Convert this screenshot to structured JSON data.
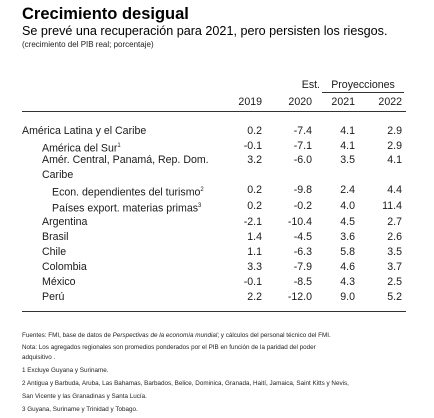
{
  "header": {
    "title": "Crecimiento desigual",
    "subtitle": "Se prevé una recuperación para 2021, pero persisten los riesgos.",
    "unit": "(crecimiento del PIB real; porcentaje)"
  },
  "table": {
    "est_label": "Est.",
    "proj_label": "Proyecciones",
    "years": [
      "2019",
      "2020",
      "2021",
      "2022"
    ],
    "rows": [
      {
        "label": "América Latina y el Caribe",
        "note": "",
        "values": [
          "0.2",
          "-7.4",
          "4.1",
          "2.9"
        ]
      },
      {
        "label": "América del Sur",
        "note": "1",
        "values": [
          "-0.1",
          "-7.1",
          "4.1",
          "2.9"
        ]
      },
      {
        "label": "Amér. Central, Panamá, Rep. Dom.",
        "note": "",
        "values": [
          "3.2",
          "-6.0",
          "3.5",
          "4.1"
        ]
      },
      {
        "label": "Caribe",
        "note": "",
        "values": [
          "",
          "",
          "",
          ""
        ]
      },
      {
        "label": "Econ. dependientes del turismo",
        "note": "2",
        "values": [
          "0.2",
          "-9.8",
          "2.4",
          "4.4"
        ]
      },
      {
        "label": "Países export. materias primas",
        "note": "3",
        "values": [
          "0.2",
          "-0.2",
          "4.0",
          "11.4"
        ]
      },
      {
        "label": "Argentina",
        "note": "",
        "values": [
          "-2.1",
          "-10.4",
          "4.5",
          "2.7"
        ]
      },
      {
        "label": "Brasil",
        "note": "",
        "values": [
          "1.4",
          "-4.5",
          "3.6",
          "2.6"
        ]
      },
      {
        "label": "Chile",
        "note": "",
        "values": [
          "1.1",
          "-6.3",
          "5.8",
          "3.5"
        ]
      },
      {
        "label": "Colombia",
        "note": "",
        "values": [
          "3.3",
          "-7.9",
          "4.6",
          "3.7"
        ]
      },
      {
        "label": "México",
        "note": "",
        "values": [
          "-0.1",
          "-8.5",
          "4.3",
          "2.5"
        ]
      },
      {
        "label": "Perú",
        "note": "",
        "values": [
          "2.2",
          "-12.0",
          "9.0",
          "5.2"
        ]
      }
    ]
  },
  "footnotes": {
    "sources_pre": "Fuentes: FMI, base de datos de ",
    "sources_italic": "Perspectivas de la economía mundial",
    "sources_post": "; y cálculos del personal técnico del FMI.",
    "note_line1": "Nota: Los agregados regionales son promedios ponderados por el PIB en función de la paridad del poder",
    "note_line2": "adquisitivo .",
    "fn1": "1 Excluye Guyana y Suriname.",
    "fn2_line1": "2 Antigua y Barbuda, Aruba, Las Bahamas, Barbados, Belice, Dominica, Granada, Haití, Jamaica, Saint Kitts y Nevis,",
    "fn2_line2": "San Vicente y las Granadinas  y Santa Lucía.",
    "fn3": "3 Guyana, Suriname y Trinidad y Tobago."
  }
}
